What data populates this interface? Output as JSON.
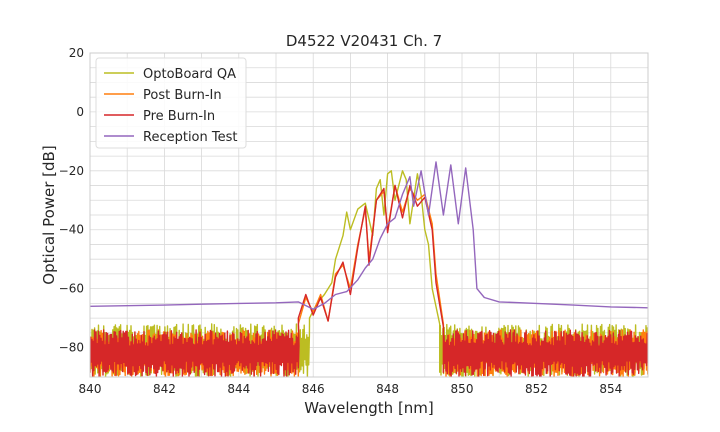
{
  "chart_data": {
    "type": "line",
    "title": "D4522 V20431 Ch. 7",
    "xlabel": "Wavelength [nm]",
    "ylabel": "Optical Power [dB]",
    "xlim": [
      840,
      855
    ],
    "ylim": [
      -90,
      20
    ],
    "xticks": [
      840,
      842,
      844,
      846,
      848,
      850,
      852,
      854
    ],
    "yticks": [
      -80,
      -60,
      -40,
      -20,
      0,
      20
    ],
    "grid": true,
    "legend_position": "top-left",
    "series": [
      {
        "name": "OptoBoard QA",
        "color": "#bcbd22",
        "noise_floor": {
          "x_range": [
            840,
            845.9
          ],
          "low": -90,
          "high": -72
        },
        "noise_floor_right": {
          "x_range": [
            849.4,
            855
          ],
          "low": -90,
          "high": -72
        },
        "points": [
          [
            845.9,
            -70
          ],
          [
            846.1,
            -65
          ],
          [
            846.3,
            -62
          ],
          [
            846.5,
            -58
          ],
          [
            846.6,
            -50
          ],
          [
            846.8,
            -42
          ],
          [
            846.9,
            -34
          ],
          [
            847.0,
            -40
          ],
          [
            847.2,
            -33
          ],
          [
            847.4,
            -31
          ],
          [
            847.6,
            -42
          ],
          [
            847.7,
            -26
          ],
          [
            847.8,
            -23
          ],
          [
            847.9,
            -35
          ],
          [
            848.0,
            -21
          ],
          [
            848.1,
            -20
          ],
          [
            848.2,
            -30
          ],
          [
            848.4,
            -20
          ],
          [
            848.5,
            -23
          ],
          [
            848.6,
            -38
          ],
          [
            848.8,
            -21
          ],
          [
            848.9,
            -28
          ],
          [
            849.0,
            -40
          ],
          [
            849.1,
            -45
          ],
          [
            849.2,
            -60
          ],
          [
            849.4,
            -72
          ]
        ]
      },
      {
        "name": "Post Burn-In",
        "color": "#ff7f0e",
        "noise_floor": {
          "x_range": [
            840,
            845.6
          ],
          "low": -90,
          "high": -74
        },
        "noise_floor_right": {
          "x_range": [
            849.5,
            855
          ],
          "low": -90,
          "high": -74
        },
        "points": [
          [
            845.6,
            -72
          ],
          [
            845.8,
            -63
          ],
          [
            846.0,
            -68
          ],
          [
            846.2,
            -62
          ],
          [
            846.4,
            -71
          ],
          [
            846.6,
            -55
          ],
          [
            846.8,
            -52
          ],
          [
            847.0,
            -60
          ],
          [
            847.2,
            -45
          ],
          [
            847.4,
            -33
          ],
          [
            847.5,
            -50
          ],
          [
            847.7,
            -30
          ],
          [
            847.9,
            -27
          ],
          [
            848.0,
            -40
          ],
          [
            848.2,
            -25
          ],
          [
            848.4,
            -34
          ],
          [
            848.6,
            -26
          ],
          [
            848.8,
            -30
          ],
          [
            849.0,
            -28
          ],
          [
            849.2,
            -38
          ],
          [
            849.3,
            -55
          ],
          [
            849.5,
            -72
          ]
        ]
      },
      {
        "name": "Pre Burn-In",
        "color": "#d62728",
        "noise_floor": {
          "x_range": [
            840,
            845.6
          ],
          "low": -90,
          "high": -74
        },
        "noise_floor_right": {
          "x_range": [
            849.5,
            855
          ],
          "low": -90,
          "high": -74
        },
        "points": [
          [
            845.6,
            -70
          ],
          [
            845.8,
            -62
          ],
          [
            846.0,
            -69
          ],
          [
            846.2,
            -63
          ],
          [
            846.4,
            -71
          ],
          [
            846.6,
            -56
          ],
          [
            846.8,
            -51
          ],
          [
            847.0,
            -62
          ],
          [
            847.2,
            -46
          ],
          [
            847.4,
            -32
          ],
          [
            847.5,
            -52
          ],
          [
            847.7,
            -30
          ],
          [
            847.9,
            -26
          ],
          [
            848.0,
            -41
          ],
          [
            848.2,
            -25
          ],
          [
            848.4,
            -36
          ],
          [
            848.6,
            -25
          ],
          [
            848.8,
            -32
          ],
          [
            849.0,
            -29
          ],
          [
            849.2,
            -40
          ],
          [
            849.3,
            -58
          ],
          [
            849.5,
            -73
          ]
        ]
      },
      {
        "name": "Reception Test",
        "color": "#9467bd",
        "points": [
          [
            840,
            -66
          ],
          [
            841,
            -65.8
          ],
          [
            842,
            -65.6
          ],
          [
            843,
            -65.3
          ],
          [
            844,
            -65
          ],
          [
            845,
            -64.8
          ],
          [
            845.6,
            -64.5
          ],
          [
            846.0,
            -67
          ],
          [
            846.3,
            -65
          ],
          [
            846.6,
            -62
          ],
          [
            846.9,
            -61
          ],
          [
            847.2,
            -57
          ],
          [
            847.4,
            -53
          ],
          [
            847.6,
            -50
          ],
          [
            847.8,
            -43
          ],
          [
            848.0,
            -38
          ],
          [
            848.2,
            -36
          ],
          [
            848.4,
            -28
          ],
          [
            848.6,
            -22
          ],
          [
            848.7,
            -32
          ],
          [
            848.9,
            -20
          ],
          [
            849.1,
            -35
          ],
          [
            849.3,
            -17
          ],
          [
            849.5,
            -35
          ],
          [
            849.7,
            -18
          ],
          [
            849.9,
            -38
          ],
          [
            850.1,
            -19
          ],
          [
            850.3,
            -40
          ],
          [
            850.4,
            -60
          ],
          [
            850.6,
            -63
          ],
          [
            851,
            -64.5
          ],
          [
            852,
            -65
          ],
          [
            853,
            -65.6
          ],
          [
            854,
            -66.2
          ],
          [
            855,
            -66.5
          ]
        ]
      }
    ]
  }
}
